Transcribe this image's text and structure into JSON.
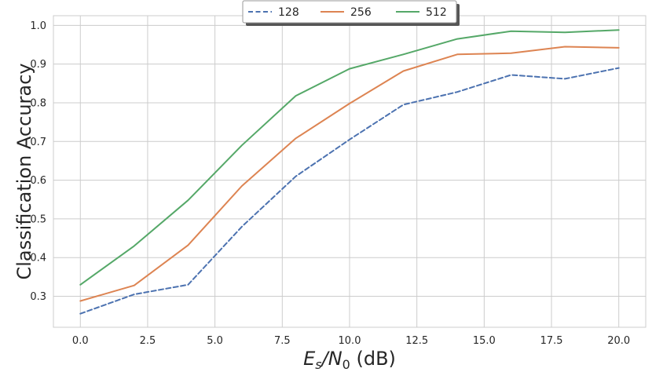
{
  "chart_data": {
    "type": "line",
    "title": "",
    "xlabel": "E_s/N_0 (dB)",
    "xlabel_parts": {
      "main": "E",
      "sub1": "s",
      "slash": "/N",
      "sub2": "0",
      "unit": " (dB)"
    },
    "ylabel": "Classification Accuracy",
    "xlim": [
      -1.0,
      21.0
    ],
    "ylim": [
      0.22,
      1.025
    ],
    "xticks": [
      0.0,
      2.5,
      5.0,
      7.5,
      10.0,
      12.5,
      15.0,
      17.5,
      20.0
    ],
    "xtick_labels": [
      "0.0",
      "2.5",
      "5.0",
      "7.5",
      "10.0",
      "12.5",
      "15.0",
      "17.5",
      "20.0"
    ],
    "yticks": [
      0.3,
      0.4,
      0.5,
      0.6,
      0.7,
      0.8,
      0.9,
      1.0
    ],
    "ytick_labels": [
      "0.3",
      "0.4",
      "0.5",
      "0.6",
      "0.7",
      "0.8",
      "0.9",
      "1.0"
    ],
    "grid": true,
    "legend_position": "top-center",
    "x": [
      0,
      2,
      4,
      6,
      8,
      10,
      12,
      14,
      16,
      18,
      20
    ],
    "series": [
      {
        "name": "128",
        "color": "#4c72b0",
        "dash": true,
        "values": [
          0.255,
          0.305,
          0.33,
          0.48,
          0.61,
          0.705,
          0.795,
          0.828,
          0.872,
          0.862,
          0.89
        ]
      },
      {
        "name": "256",
        "color": "#dd8452",
        "dash": false,
        "values": [
          0.288,
          0.328,
          0.432,
          0.585,
          0.708,
          0.798,
          0.882,
          0.925,
          0.928,
          0.945,
          0.942
        ]
      },
      {
        "name": "512",
        "color": "#55a868",
        "dash": false,
        "values": [
          0.33,
          0.43,
          0.548,
          0.69,
          0.818,
          0.888,
          0.925,
          0.965,
          0.985,
          0.982,
          0.988
        ]
      }
    ]
  }
}
